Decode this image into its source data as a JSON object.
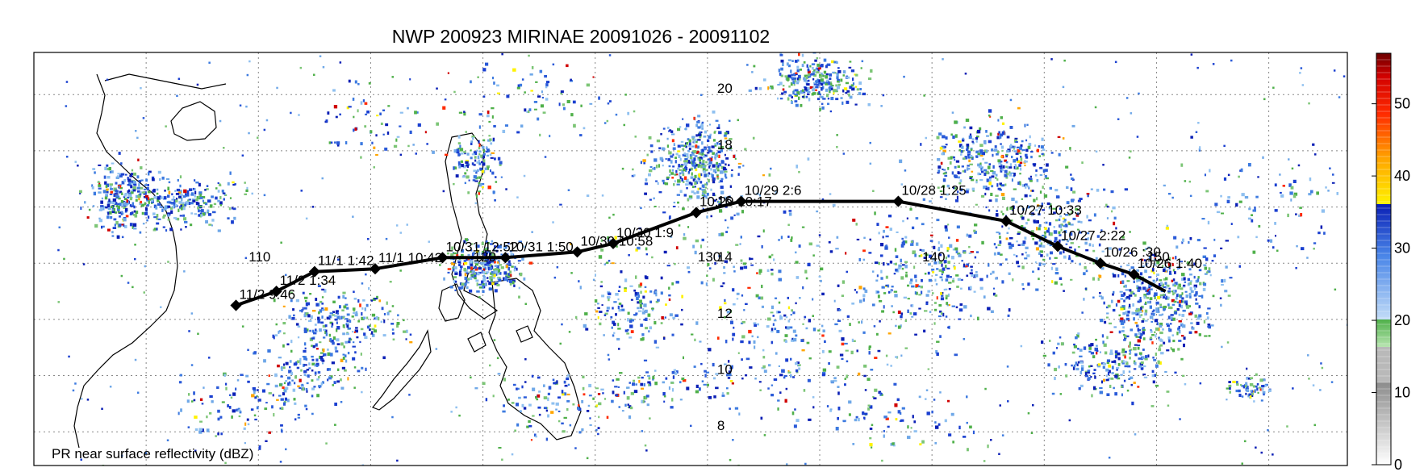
{
  "title": "NWP 200923 MIRINAE 20091026 - 20091102",
  "footer_label": "PR near surface reflectivity (dBZ)",
  "colorbar": {
    "ticks": [
      "0",
      "10",
      "20",
      "30",
      "40",
      "50"
    ],
    "range": [
      0,
      57
    ],
    "segments": [
      {
        "from": 0,
        "to": 18,
        "color_ramp": [
          "#ffffff",
          "#8c8c8c"
        ]
      },
      {
        "from": 18,
        "to": 24,
        "color_ramp": [
          "#b7e4b0",
          "#4fb04a"
        ]
      },
      {
        "from": 24,
        "to": 39,
        "color_ramp": [
          "#c2dcf7",
          "#0a1fb5"
        ]
      },
      {
        "from": 39,
        "to": 57,
        "color_ramp": [
          "#fff200",
          "#8b0000"
        ]
      }
    ]
  },
  "lon_labels": [
    "110",
    "120",
    "130",
    "140",
    "150"
  ],
  "lat_labels": [
    "8",
    "10",
    "12",
    "14",
    "16",
    "18",
    "20"
  ],
  "track": [
    {
      "lon": 150.4,
      "lat": 13.0,
      "label": ""
    },
    {
      "lon": 149.0,
      "lat": 13.6,
      "label": "10/26 1:40"
    },
    {
      "lon": 147.5,
      "lat": 14.0,
      "label": "10/26 :30"
    },
    {
      "lon": 145.6,
      "lat": 14.6,
      "label": "10/27 2:22"
    },
    {
      "lon": 143.3,
      "lat": 15.5,
      "label": "10/27 10:33"
    },
    {
      "lon": 138.5,
      "lat": 16.2,
      "label": "10/28 1:25"
    },
    {
      "lon": 131.5,
      "lat": 16.2,
      "label": "10/29 2:6"
    },
    {
      "lon": 129.5,
      "lat": 15.8,
      "label": "10:29 10:17"
    },
    {
      "lon": 125.8,
      "lat": 14.7,
      "label": "10/30 1:9"
    },
    {
      "lon": 124.2,
      "lat": 14.4,
      "label": "10/30 10:58"
    },
    {
      "lon": 121.0,
      "lat": 14.2,
      "label": "10/31 1:50"
    },
    {
      "lon": 118.2,
      "lat": 14.2,
      "label": "10/31 12:52"
    },
    {
      "lon": 115.2,
      "lat": 13.8,
      "label": "11/1 10:42"
    },
    {
      "lon": 112.5,
      "lat": 13.7,
      "label": "11/1 1:42"
    },
    {
      "lon": 110.8,
      "lat": 13.0,
      "label": "11/2 1:34"
    },
    {
      "lon": 109.0,
      "lat": 12.5,
      "label": "11/2 9:46"
    }
  ]
}
